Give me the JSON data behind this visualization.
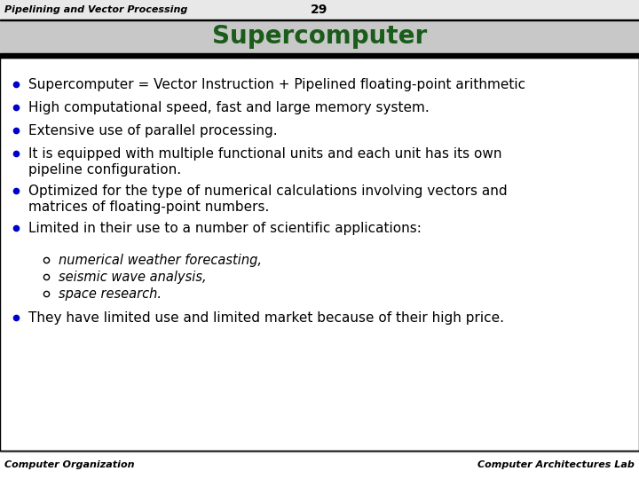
{
  "slide_title": "Supercomputer",
  "slide_number": "29",
  "header_text": "Pipelining and Vector Processing",
  "footer_left": "Computer Organization",
  "footer_right": "Computer Architectures Lab",
  "title_color": "#1a5c1a",
  "bg_color": "#ffffff",
  "bullet_color": "#0000cc",
  "bullet_points": [
    "Supercomputer = Vector Instruction + Pipelined floating-point arithmetic",
    "High computational speed, fast and large memory system.",
    "Extensive use of parallel processing.",
    "It is equipped with multiple functional units and each unit has its own\npipeline configuration.",
    "Optimized for the type of numerical calculations involving vectors and\nmatrices of floating-point numbers.",
    "Limited in their use to a number of scientific applications:"
  ],
  "sub_bullets": [
    "numerical weather forecasting,",
    "seismic wave analysis,",
    "space research."
  ],
  "last_bullet": "They have limited use and limited market because of their high price.",
  "text_color": "#000000",
  "font_size": 11.0,
  "sub_font_size": 10.5
}
